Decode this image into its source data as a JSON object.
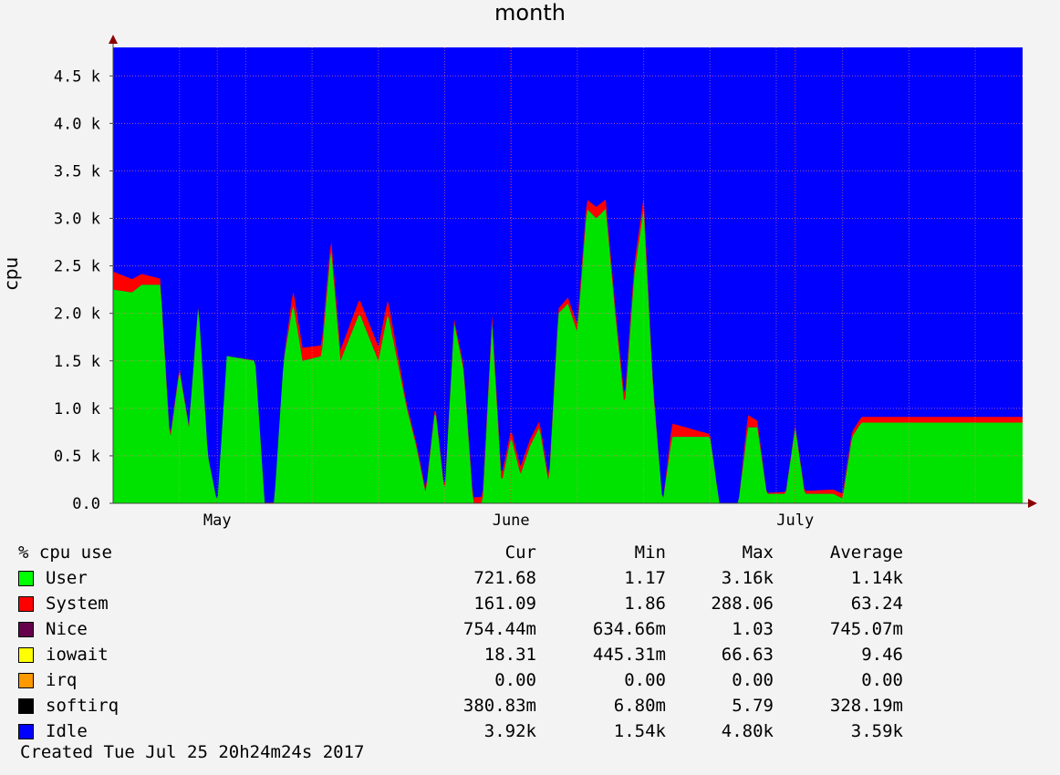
{
  "chart_data": {
    "type": "area",
    "title": "month",
    "ylabel": "cpu",
    "ylim": [
      0,
      4800
    ],
    "y_ticks": [
      {
        "value": 0,
        "label": "0.0"
      },
      {
        "value": 500,
        "label": "0.5 k"
      },
      {
        "value": 1000,
        "label": "1.0 k"
      },
      {
        "value": 1500,
        "label": "1.5 k"
      },
      {
        "value": 2000,
        "label": "2.0 k"
      },
      {
        "value": 2500,
        "label": "2.5 k"
      },
      {
        "value": 3000,
        "label": "3.0 k"
      },
      {
        "value": 3500,
        "label": "3.5 k"
      },
      {
        "value": 4000,
        "label": "4.0 k"
      },
      {
        "value": 4500,
        "label": "4.5 k"
      }
    ],
    "x_axis": {
      "start": "2017-04-20",
      "end": "2017-07-25",
      "labels": [
        {
          "date": "2017-05-01",
          "label": "May"
        },
        {
          "date": "2017-06-01",
          "label": "June"
        },
        {
          "date": "2017-07-01",
          "label": "July"
        }
      ]
    },
    "grid": true,
    "stacked": true,
    "series_colors": {
      "user": "#00e300",
      "system": "#ff0000",
      "idle": "#0000ff"
    },
    "total": 4800,
    "user_points": [
      [
        "2017-04-20",
        2250
      ],
      [
        "2017-04-22",
        2220
      ],
      [
        "2017-04-23",
        2300
      ],
      [
        "2017-04-25",
        2300
      ],
      [
        "2017-04-26",
        650
      ],
      [
        "2017-04-27",
        1400
      ],
      [
        "2017-04-28",
        800
      ],
      [
        "2017-04-29",
        2100
      ],
      [
        "2017-04-30",
        500
      ],
      [
        "2017-05-01",
        0
      ],
      [
        "2017-05-02",
        1550
      ],
      [
        "2017-05-05",
        1500
      ],
      [
        "2017-05-06",
        0
      ],
      [
        "2017-05-07",
        0
      ],
      [
        "2017-05-08",
        1500
      ],
      [
        "2017-05-09",
        2100
      ],
      [
        "2017-05-10",
        1500
      ],
      [
        "2017-05-12",
        1550
      ],
      [
        "2017-05-13",
        2700
      ],
      [
        "2017-05-14",
        1500
      ],
      [
        "2017-05-16",
        2000
      ],
      [
        "2017-05-18",
        1500
      ],
      [
        "2017-05-19",
        2000
      ],
      [
        "2017-05-20",
        1500
      ],
      [
        "2017-05-21",
        1000
      ],
      [
        "2017-05-22",
        600
      ],
      [
        "2017-05-23",
        100
      ],
      [
        "2017-05-24",
        1000
      ],
      [
        "2017-05-25",
        100
      ],
      [
        "2017-05-26",
        1900
      ],
      [
        "2017-05-27",
        1400
      ],
      [
        "2017-05-28",
        0
      ],
      [
        "2017-05-29",
        0
      ],
      [
        "2017-05-30",
        1900
      ],
      [
        "2017-05-31",
        200
      ],
      [
        "2017-06-01",
        700
      ],
      [
        "2017-06-02",
        300
      ],
      [
        "2017-06-03",
        600
      ],
      [
        "2017-06-04",
        800
      ],
      [
        "2017-06-05",
        200
      ],
      [
        "2017-06-06",
        2000
      ],
      [
        "2017-06-07",
        2100
      ],
      [
        "2017-06-08",
        1800
      ],
      [
        "2017-06-09",
        3100
      ],
      [
        "2017-06-10",
        3000
      ],
      [
        "2017-06-11",
        3100
      ],
      [
        "2017-06-12",
        2000
      ],
      [
        "2017-06-13",
        1000
      ],
      [
        "2017-06-14",
        2400
      ],
      [
        "2017-06-15",
        3100
      ],
      [
        "2017-06-16",
        1200
      ],
      [
        "2017-06-17",
        0
      ],
      [
        "2017-06-18",
        700
      ],
      [
        "2017-06-19",
        700
      ],
      [
        "2017-06-20",
        700
      ],
      [
        "2017-06-22",
        700
      ],
      [
        "2017-06-23",
        0
      ],
      [
        "2017-06-25",
        0
      ],
      [
        "2017-06-26",
        800
      ],
      [
        "2017-06-27",
        800
      ],
      [
        "2017-06-28",
        100
      ],
      [
        "2017-06-30",
        100
      ],
      [
        "2017-07-01",
        800
      ],
      [
        "2017-07-02",
        100
      ],
      [
        "2017-07-05",
        100
      ],
      [
        "2017-07-06",
        50
      ],
      [
        "2017-07-07",
        700
      ],
      [
        "2017-07-08",
        850
      ]
    ],
    "system_points": [
      [
        "2017-04-20",
        190
      ],
      [
        "2017-04-26",
        40
      ],
      [
        "2017-05-01",
        0
      ],
      [
        "2017-05-08",
        10
      ],
      [
        "2017-05-09",
        150
      ],
      [
        "2017-05-13",
        100
      ],
      [
        "2017-05-16",
        150
      ],
      [
        "2017-05-19",
        150
      ],
      [
        "2017-05-21",
        40
      ],
      [
        "2017-05-26",
        40
      ],
      [
        "2017-05-30",
        80
      ],
      [
        "2017-06-02",
        80
      ],
      [
        "2017-06-06",
        50
      ],
      [
        "2017-06-09",
        100
      ],
      [
        "2017-06-10",
        120
      ],
      [
        "2017-06-12",
        80
      ],
      [
        "2017-06-15",
        120
      ],
      [
        "2017-06-17",
        0
      ],
      [
        "2017-06-18",
        140
      ],
      [
        "2017-06-23",
        0
      ],
      [
        "2017-06-25",
        0
      ],
      [
        "2017-06-26",
        130
      ],
      [
        "2017-06-28",
        10
      ],
      [
        "2017-07-06",
        50
      ],
      [
        "2017-07-08",
        60
      ]
    ]
  },
  "legend": {
    "header": {
      "name": "% cpu use",
      "cur": "Cur",
      "min": "Min",
      "max": "Max",
      "avg": "Average"
    },
    "rows": [
      {
        "name": "User",
        "color": "#00ff00",
        "cur": "721.68",
        "min": "1.17",
        "max": "3.16k",
        "avg": "1.14k"
      },
      {
        "name": "System",
        "color": "#ff0000",
        "cur": "161.09",
        "min": "1.86",
        "max": "288.06",
        "avg": "63.24"
      },
      {
        "name": "Nice",
        "color": "#66004c",
        "cur": "754.44m",
        "min": "634.66m",
        "max": "1.03",
        "avg": "745.07m"
      },
      {
        "name": "iowait",
        "color": "#ffff00",
        "cur": "18.31",
        "min": "445.31m",
        "max": "66.63",
        "avg": "9.46"
      },
      {
        "name": "irq",
        "color": "#ff9900",
        "cur": "0.00",
        "min": "0.00",
        "max": "0.00",
        "avg": "0.00"
      },
      {
        "name": "softirq",
        "color": "#000000",
        "cur": "380.83m",
        "min": "6.80m",
        "max": "5.79",
        "avg": "328.19m"
      },
      {
        "name": "Idle",
        "color": "#0000ff",
        "cur": "3.92k",
        "min": "1.54k",
        "max": "4.80k",
        "avg": "3.59k"
      }
    ]
  },
  "created": "Created Tue Jul 25 20h24m24s 2017"
}
